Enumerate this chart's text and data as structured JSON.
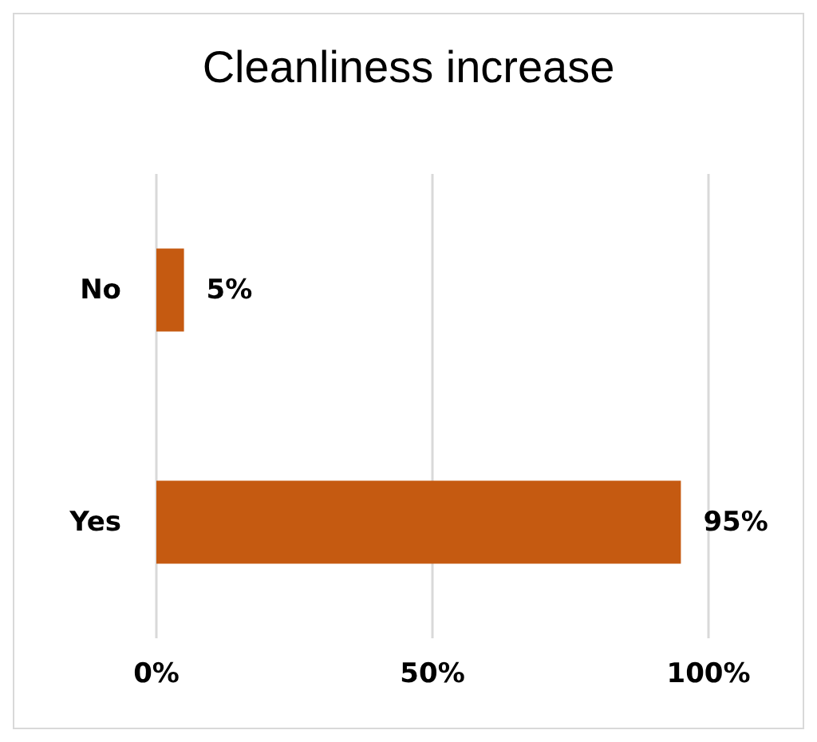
{
  "chart_data": {
    "type": "bar",
    "orientation": "horizontal",
    "title": "Cleanliness increase",
    "categories": [
      "No",
      "Yes"
    ],
    "values": [
      5,
      95
    ],
    "color": "#c55a11",
    "value_labels": [
      "5%",
      "95%"
    ],
    "xlim": [
      0,
      100
    ],
    "xticks": [
      {
        "value": 0,
        "label": "0%"
      },
      {
        "value": 50,
        "label": "50%"
      },
      {
        "value": 100,
        "label": "100%"
      }
    ],
    "grid": "x"
  }
}
